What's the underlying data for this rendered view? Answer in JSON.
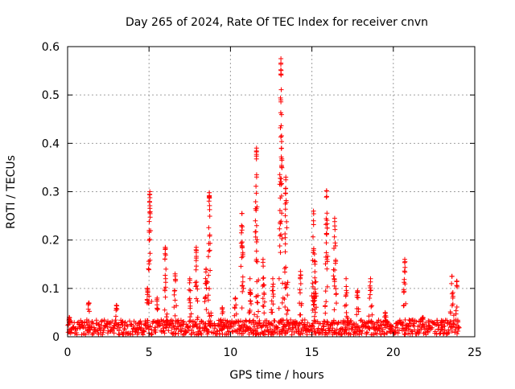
{
  "chart_data": {
    "type": "scatter",
    "title": "Day 265 of 2024, Rate Of TEC Index for receiver cnvn",
    "xlabel": "GPS time / hours",
    "ylabel": "ROTI / TECUs",
    "xlim": [
      0,
      25
    ],
    "ylim": [
      0,
      0.6
    ],
    "xticks": [
      "0",
      "5",
      "10",
      "15",
      "20",
      "25"
    ],
    "yticks": [
      "0",
      "0.1",
      "0.2",
      "0.3",
      "0.4",
      "0.5",
      "0.6"
    ],
    "grid": true,
    "marker": "+",
    "series": [
      {
        "color": "#ff0000",
        "baseline_range": [
          0.01,
          0.035
        ],
        "peaks": [
          {
            "x": 0.1,
            "max": 0.04
          },
          {
            "x": 1.3,
            "max": 0.07
          },
          {
            "x": 3.0,
            "max": 0.065
          },
          {
            "x": 4.9,
            "max": 0.1
          },
          {
            "x": 5.05,
            "max": 0.3
          },
          {
            "x": 5.5,
            "max": 0.08
          },
          {
            "x": 6.0,
            "max": 0.185
          },
          {
            "x": 6.6,
            "max": 0.13
          },
          {
            "x": 7.5,
            "max": 0.12
          },
          {
            "x": 7.9,
            "max": 0.185
          },
          {
            "x": 8.5,
            "max": 0.14
          },
          {
            "x": 8.7,
            "max": 0.298
          },
          {
            "x": 9.5,
            "max": 0.06
          },
          {
            "x": 10.3,
            "max": 0.08
          },
          {
            "x": 10.7,
            "max": 0.255
          },
          {
            "x": 11.2,
            "max": 0.12
          },
          {
            "x": 11.6,
            "max": 0.39
          },
          {
            "x": 12.0,
            "max": 0.16
          },
          {
            "x": 12.6,
            "max": 0.12
          },
          {
            "x": 13.1,
            "max": 0.575
          },
          {
            "x": 13.4,
            "max": 0.33
          },
          {
            "x": 14.3,
            "max": 0.135
          },
          {
            "x": 15.1,
            "max": 0.26
          },
          {
            "x": 15.2,
            "max": 0.155
          },
          {
            "x": 15.9,
            "max": 0.302
          },
          {
            "x": 16.4,
            "max": 0.245
          },
          {
            "x": 17.1,
            "max": 0.12
          },
          {
            "x": 17.8,
            "max": 0.095
          },
          {
            "x": 18.6,
            "max": 0.12
          },
          {
            "x": 19.5,
            "max": 0.05
          },
          {
            "x": 20.7,
            "max": 0.16
          },
          {
            "x": 21.8,
            "max": 0.04
          },
          {
            "x": 23.6,
            "max": 0.125
          },
          {
            "x": 23.9,
            "max": 0.115
          }
        ]
      }
    ]
  }
}
